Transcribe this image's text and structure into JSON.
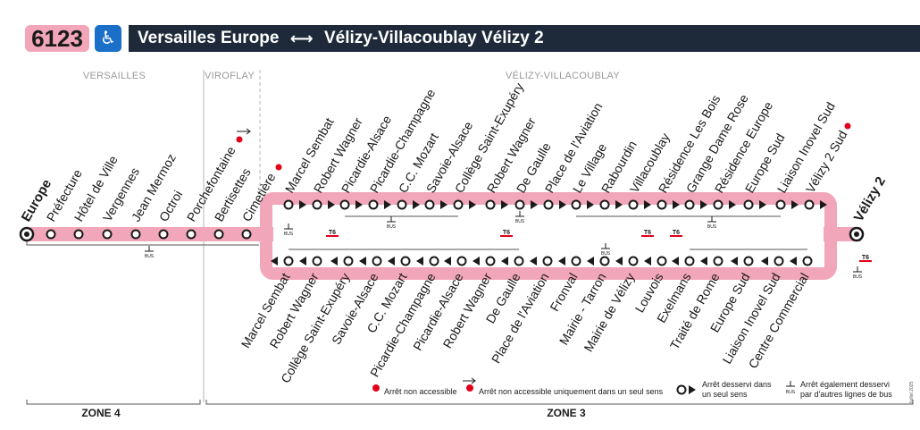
{
  "header": {
    "line_number": "6123",
    "accessibility_icon": "wheelchair-icon",
    "origin": "Versailles Europe",
    "destination": "Vélizy-Villacoublay Vélizy 2"
  },
  "colors": {
    "route": "#f2a6b9",
    "header_bg": "#1e2a3a",
    "pmr_blue": "#1a6fc9",
    "t6_red": "#e2001a"
  },
  "zones": {
    "top": [
      "VERSAILLES",
      "VIROFLAY",
      "VÉLIZY-VILLACOUBLAY"
    ],
    "bottom": [
      "ZONE 4",
      "ZONE 3"
    ]
  },
  "termini": {
    "start": "Europe",
    "end": "Vélizy 2"
  },
  "common_stops": [
    "Préfecture",
    "Hôtel de Ville",
    "Vergennes",
    "Jean Mermoz",
    "Octroi",
    "Porchefontaine",
    "Bertisettes",
    "Cimetière"
  ],
  "upper_stops": [
    "Marcel Sembat",
    "Robert Wagner",
    "Picardie-Alsace",
    "Picardie-Champagne",
    "C.C. Mozart",
    "Savoie-Alsace",
    "Collège Saint-Exupéry",
    "Robert Wagner",
    "De Gaulle",
    "Place de l'Aviation",
    "Le Village",
    "Rabourdin",
    "Villacoublay",
    "Résidence Les Bois",
    "Grange Dame Rose",
    "Résidence Europe",
    "Europe Sud",
    "Liaison Inovel Sud",
    "Vélizy 2 Sud"
  ],
  "lower_stops": [
    "Marcel Sembat",
    "Robert Wagner",
    "Collège Saint-Exupéry",
    "Savoie-Alsace",
    "C.C. Mozart",
    "Picardie-Champagne",
    "Picardie-Alsace",
    "Robert Wagner",
    "De Gaulle",
    "Place de l'Aviation",
    "Fronval",
    "Mairie - Tarron",
    "Mairie de Vélizy",
    "Louvois",
    "Exelmans",
    "Traité de Rome",
    "Europe Sud",
    "Liaison Inovel Sud",
    "Centre Commercial"
  ],
  "tags": {
    "bus": "BUS",
    "tram": "T6"
  },
  "legend": {
    "not_accessible": "Arrêt non accessible",
    "not_accessible_one_way": "Arrêt non accessible uniquement dans un seul sens",
    "one_way_l1": "Arrêt desservi dans",
    "one_way_l2": "un seul sens",
    "other_lines_l1": "Arrêt également desservi",
    "other_lines_l2": "par d'autres lignes de bus"
  },
  "date": "Juillet 2025"
}
